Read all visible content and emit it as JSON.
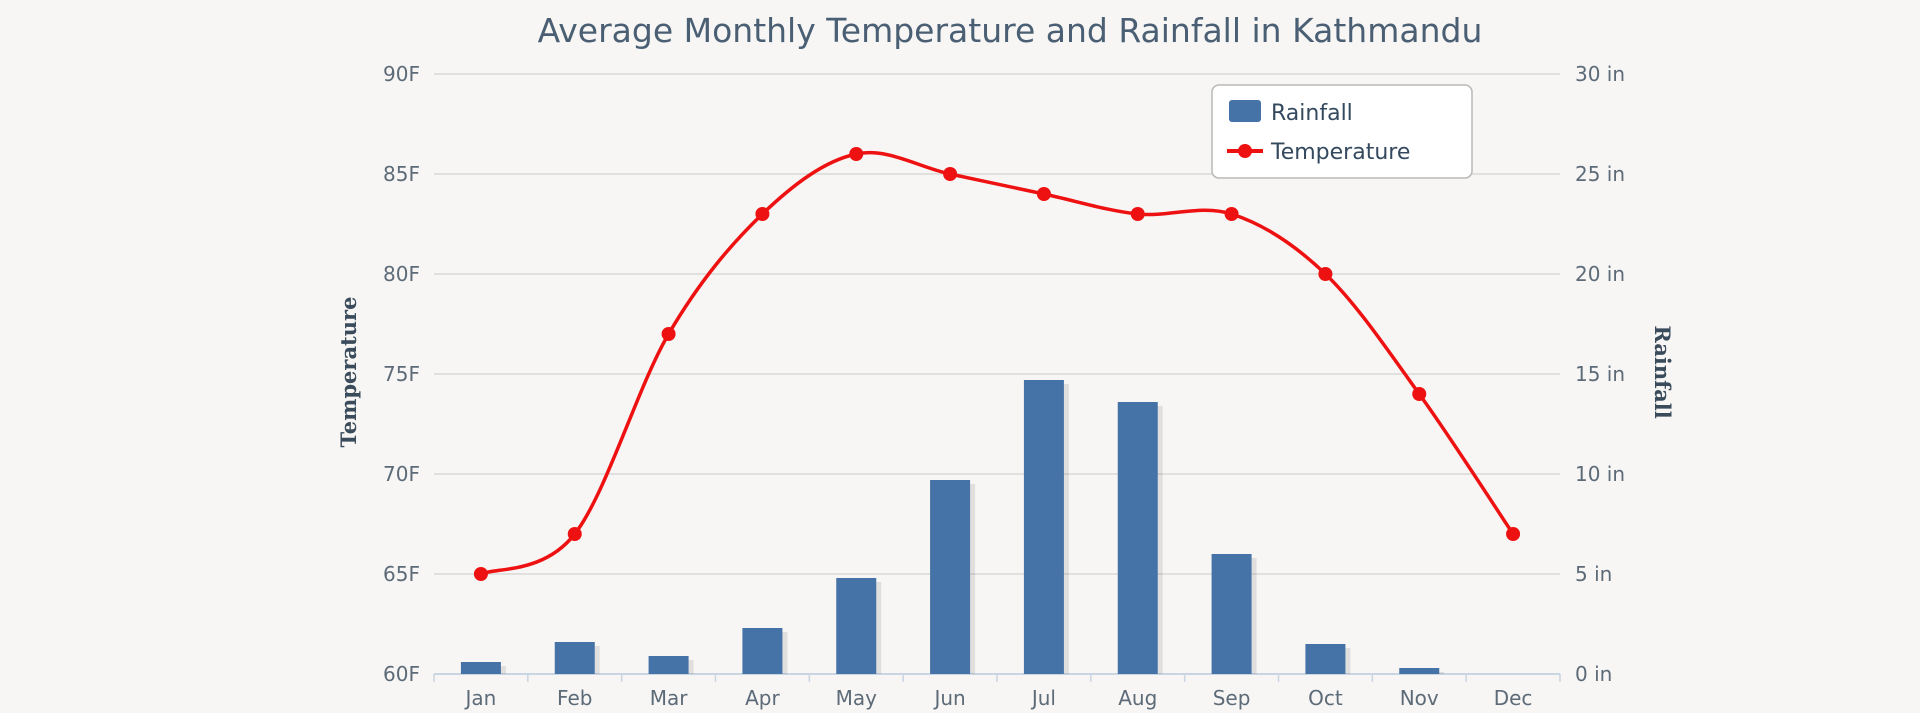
{
  "chart_data": {
    "type": "bar+line",
    "title": "Average Monthly Temperature and Rainfall in Kathmandu",
    "categories": [
      "Jan",
      "Feb",
      "Mar",
      "Apr",
      "May",
      "Jun",
      "Jul",
      "Aug",
      "Sep",
      "Oct",
      "Nov",
      "Dec"
    ],
    "series": [
      {
        "name": "Rainfall",
        "type": "bar",
        "axis": "right",
        "color": "#4572a7",
        "values": [
          0.6,
          1.6,
          0.9,
          2.3,
          4.8,
          9.7,
          14.7,
          13.6,
          6.0,
          1.5,
          0.3,
          0.0
        ]
      },
      {
        "name": "Temperature",
        "type": "line",
        "axis": "left",
        "color": "#ee1111",
        "values": [
          65,
          67,
          77,
          83,
          86,
          85,
          84,
          83,
          83,
          80,
          74,
          67
        ]
      }
    ],
    "y_left": {
      "label": "Temperature",
      "min": 60,
      "max": 90,
      "step": 5,
      "tick_labels": [
        "60F",
        "65F",
        "70F",
        "75F",
        "80F",
        "85F",
        "90F"
      ]
    },
    "y_right": {
      "label": "Rainfall",
      "min": 0,
      "max": 30,
      "step": 5,
      "tick_labels": [
        "0 in",
        "5 in",
        "10 in",
        "15 in",
        "20 in",
        "25 in",
        "30 in"
      ]
    },
    "grid": true,
    "legend_position": "top-right"
  }
}
